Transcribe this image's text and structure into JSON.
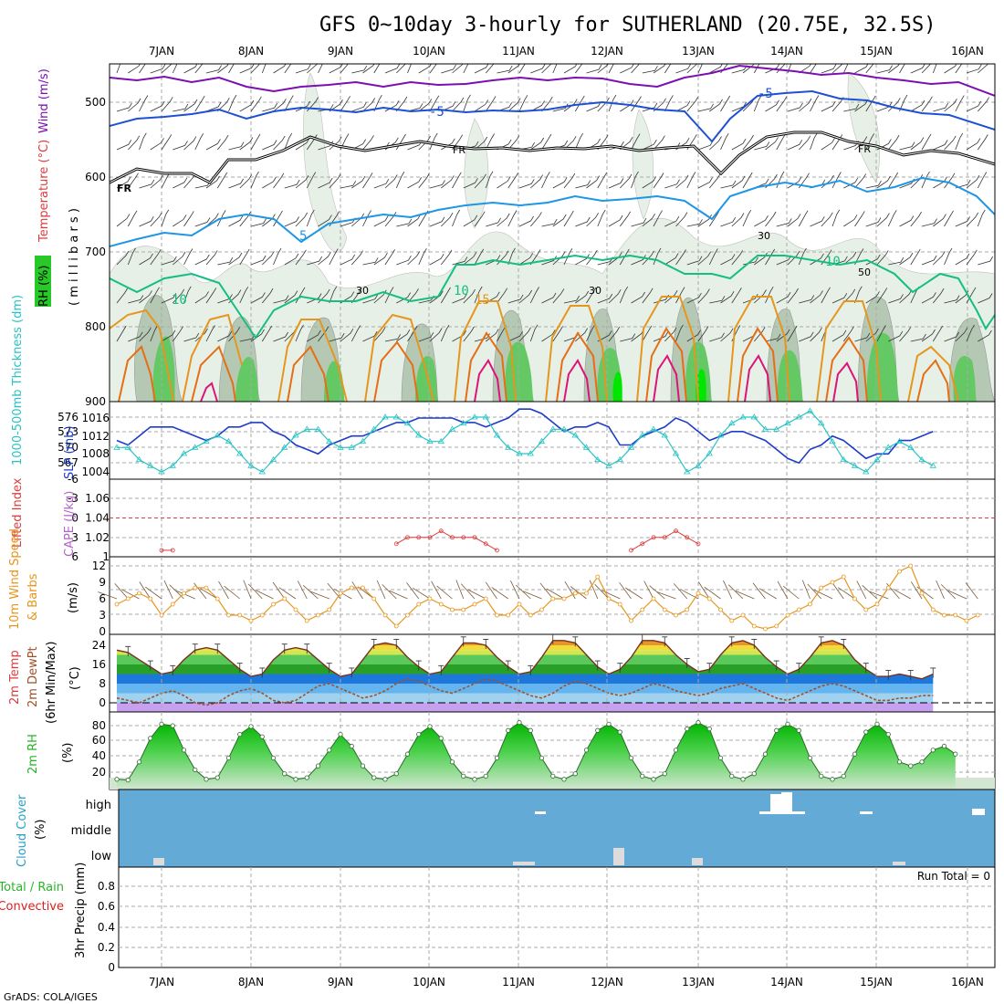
{
  "title": "GFS 0~10day 3-hourly for SUTHERLAND (20.75E, 32.5S)",
  "credit": "GrADS: COLA/IGES",
  "x_axis": {
    "labels": [
      "7JAN",
      "8JAN",
      "9JAN",
      "10JAN",
      "11JAN",
      "12JAN",
      "13JAN",
      "14JAN",
      "15JAN",
      "16JAN"
    ]
  },
  "panels": {
    "upper_air": {
      "ylabel_rh": "RH (%)",
      "ylabel_temp": "Temperature (°C)",
      "ylabel_wind": "Wind (m/s)",
      "ylabel_pressure": "( m i l l i b a r s )",
      "yticks": [
        "500",
        "600",
        "700",
        "800",
        "900"
      ],
      "contour_labels": [
        "-5",
        "-5",
        "FR",
        "FR",
        "FR",
        "5",
        "10",
        "10",
        "10",
        "15"
      ],
      "rh_labels": [
        "30",
        "30",
        "30",
        "50"
      ]
    },
    "thickness_slp": {
      "ylabel_thickness": "1000-500mb Thickness (dm)",
      "ylabel_slp": "SLP (mb)",
      "yticks_left": [
        "576",
        "573",
        "570",
        "567"
      ],
      "yticks_right": [
        "1016",
        "1012",
        "1008",
        "1004"
      ]
    },
    "lifted_cape": {
      "ylabel_li": "Lifted Index",
      "ylabel_cape": "CAPE (J/kg)",
      "yticks_left": [
        "-6",
        "-3",
        "0",
        "3",
        "6"
      ],
      "yticks_right": [
        "1.06",
        "1.04",
        "1.02",
        "1"
      ]
    },
    "wind10m": {
      "ylabel_speed": "10m Wind Speed",
      "ylabel_barbs": "& Barbs",
      "units": "(m/s)",
      "yticks": [
        "12",
        "9",
        "6",
        "3",
        "0"
      ]
    },
    "temp2m": {
      "ylabel_temp": "2m Temp",
      "ylabel_dew": "2m DewPt",
      "ylabel_minmax": "(6hr Min/Max)",
      "units": "(°C)",
      "yticks": [
        "24",
        "16",
        "8",
        "0"
      ]
    },
    "rh2m": {
      "ylabel": "2m RH",
      "units": "(%)",
      "yticks": [
        "80",
        "60",
        "40",
        "20"
      ]
    },
    "cloud": {
      "ylabel": "Cloud Cover",
      "units": "(%)",
      "levels": [
        "high",
        "middle",
        "low"
      ]
    },
    "precip": {
      "ylabel_total": "Total / Rain",
      "ylabel_conv": "Convective",
      "ylabel": "3hr Precip (mm)",
      "run_total": "Run Total = 0",
      "yticks": [
        "0.8",
        "0.6",
        "0.4",
        "0.2",
        "0"
      ]
    }
  },
  "colors": {
    "purple": "#7b0fb4",
    "blue": "#1e50d2",
    "black": "#000000",
    "cyan_blue": "#1e96e6",
    "green_contour": "#14be82",
    "orange": "#e6961e",
    "dark_orange": "#e66e14",
    "magenta": "#dc1478",
    "slp": "#1e3cc8",
    "thickness": "#28c3c3",
    "li": "#dc3c3c",
    "wind": "#e6961e",
    "cloud_bg": "#64aad7",
    "rh_green": "#28c828",
    "dew": "#a05028",
    "precip_green": "#28b428",
    "precip_red": "#dc1e1e"
  },
  "chart_data": [
    {
      "type": "line",
      "panel": "thickness_slp",
      "x_unit": "3-hourly steps from 6 Jan 12Z",
      "series": [
        {
          "name": "SLP (mb)",
          "values": [
            1011,
            1010,
            1012,
            1014,
            1014,
            1014,
            1013,
            1012,
            1011,
            1012,
            1014,
            1014,
            1015,
            1015,
            1013,
            1012,
            1010,
            1009,
            1008,
            1010,
            1011,
            1012,
            1012,
            1013,
            1014,
            1015,
            1015,
            1016,
            1016,
            1016,
            1016,
            1015,
            1015,
            1014,
            1015,
            1016,
            1018,
            1018,
            1017,
            1015,
            1013,
            1014,
            1014,
            1015,
            1014,
            1010,
            1010,
            1012,
            1013,
            1014,
            1016,
            1015,
            1013,
            1011,
            1012,
            1013,
            1013,
            1012,
            1011,
            1009,
            1007,
            1006,
            1009,
            1010,
            1012,
            1011,
            1009,
            1007,
            1008,
            1008,
            1011,
            1011,
            1012,
            1013
          ]
        },
        {
          "name": "1000-500mb Thickness (dm)",
          "values": [
            571,
            571,
            569,
            568,
            567,
            568,
            570,
            571,
            572,
            573,
            572,
            570,
            568,
            567,
            569,
            571,
            573,
            574,
            574,
            572,
            571,
            571,
            572,
            574,
            576,
            576,
            575,
            573,
            572,
            572,
            574,
            575,
            576,
            576,
            573,
            571,
            570,
            570,
            572,
            574,
            574,
            573,
            571,
            569,
            568,
            569,
            571,
            573,
            574,
            573,
            570,
            567,
            568,
            570,
            573,
            575,
            576,
            576,
            574,
            574,
            575,
            576,
            577,
            575,
            572,
            569,
            568,
            567,
            569,
            571,
            572,
            571,
            569,
            568
          ]
        }
      ]
    },
    {
      "type": "line",
      "panel": "lifted_cape",
      "series": [
        {
          "name": "Lifted Index",
          "values": [
            6,
            6,
            6,
            6,
            5,
            5,
            6,
            6,
            6,
            6,
            6,
            6,
            6,
            6,
            6,
            6,
            6,
            6,
            6,
            6,
            6,
            6,
            6,
            6,
            6,
            4,
            3,
            3,
            3,
            2,
            3,
            3,
            3,
            4,
            5,
            6,
            6,
            6,
            6,
            6,
            6,
            6,
            6,
            6,
            6,
            6,
            5,
            4,
            3,
            3,
            2,
            3,
            4,
            6,
            6,
            6,
            6,
            6,
            6,
            6,
            6,
            6,
            6,
            6,
            6,
            6,
            6,
            6,
            6,
            6,
            6,
            6,
            6,
            6
          ]
        }
      ]
    },
    {
      "type": "line",
      "panel": "wind10m",
      "series": [
        {
          "name": "10m Wind Speed (m/s)",
          "values": [
            5,
            6,
            7,
            6,
            3,
            5,
            7,
            8,
            8,
            6,
            3,
            3,
            2,
            3,
            5,
            6,
            4,
            2,
            3,
            4,
            7,
            8,
            8,
            6,
            3,
            1,
            3,
            5,
            6,
            5,
            4,
            4,
            5,
            6,
            3,
            3,
            5,
            3,
            4,
            6,
            6,
            7,
            7,
            10,
            6,
            5,
            2,
            4,
            6,
            4,
            3,
            4,
            7,
            6,
            4,
            2,
            3,
            1,
            0.5,
            1,
            3,
            4,
            5,
            8,
            9,
            10,
            6,
            4,
            5,
            8,
            11,
            12,
            7,
            4,
            3,
            3,
            2,
            3
          ]
        }
      ]
    },
    {
      "type": "area",
      "panel": "temp2m",
      "series": [
        {
          "name": "2m Temp (°C)",
          "values": [
            22,
            21,
            18,
            15,
            12,
            13,
            18,
            22,
            23,
            22,
            18,
            14,
            11,
            12,
            18,
            22,
            23,
            22,
            18,
            14,
            11,
            12,
            18,
            24,
            25,
            24,
            19,
            15,
            12,
            13,
            19,
            25,
            25,
            24,
            19,
            15,
            12,
            13,
            19,
            26,
            26,
            25,
            20,
            15,
            12,
            14,
            19,
            26,
            26,
            25,
            20,
            16,
            13,
            14,
            20,
            25,
            26,
            24,
            19,
            15,
            12,
            14,
            19,
            25,
            26,
            24,
            18,
            14,
            11,
            11,
            12,
            11,
            10,
            12
          ]
        },
        {
          "name": "2m DewPt (°C)",
          "values": [
            2,
            1,
            0,
            2,
            4,
            5,
            3,
            0,
            -1,
            0,
            3,
            5,
            6,
            4,
            1,
            0,
            1,
            4,
            7,
            8,
            6,
            4,
            2,
            3,
            5,
            8,
            10,
            9,
            7,
            5,
            4,
            6,
            8,
            10,
            9,
            7,
            5,
            3,
            2,
            4,
            7,
            9,
            8,
            6,
            4,
            3,
            4,
            6,
            8,
            7,
            5,
            4,
            3,
            4,
            6,
            7,
            8,
            6,
            4,
            2,
            1,
            3,
            5,
            7,
            8,
            7,
            5,
            3,
            1,
            1,
            2,
            2,
            3,
            3
          ]
        }
      ]
    },
    {
      "type": "area",
      "panel": "rh2m",
      "series": [
        {
          "name": "2m RH (%)",
          "values": [
            18,
            17,
            40,
            70,
            88,
            86,
            55,
            30,
            18,
            20,
            45,
            75,
            85,
            72,
            45,
            25,
            18,
            20,
            35,
            55,
            75,
            60,
            35,
            20,
            18,
            25,
            50,
            75,
            85,
            70,
            40,
            22,
            18,
            22,
            45,
            80,
            90,
            80,
            45,
            22,
            18,
            25,
            55,
            80,
            88,
            78,
            45,
            22,
            18,
            25,
            55,
            82,
            90,
            82,
            45,
            22,
            18,
            25,
            50,
            80,
            88,
            80,
            45,
            22,
            18,
            22,
            50,
            78,
            88,
            75,
            40,
            35,
            40,
            55,
            60,
            50
          ]
        }
      ]
    },
    {
      "type": "bar",
      "panel": "precip",
      "series": [
        {
          "name": "3hr Precip (mm)",
          "values": []
        }
      ]
    }
  ]
}
